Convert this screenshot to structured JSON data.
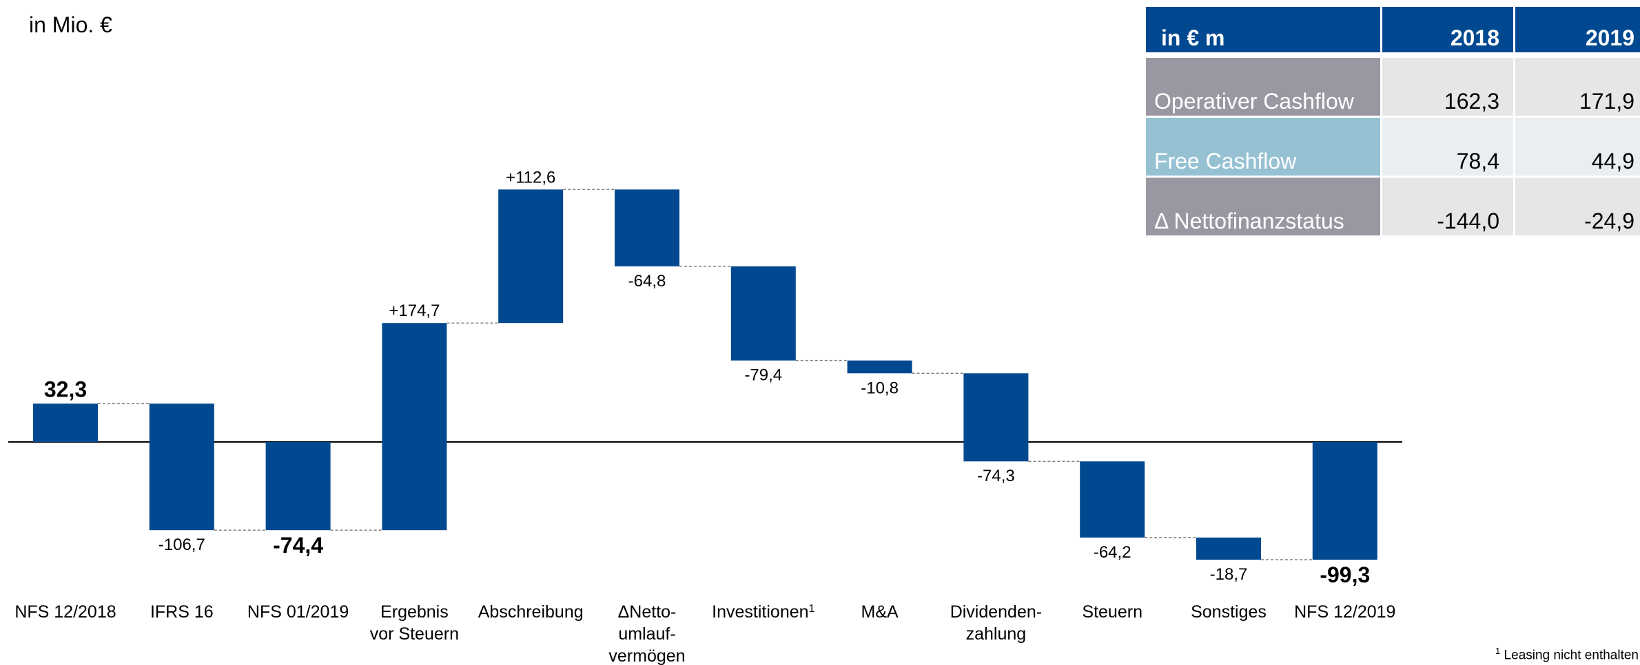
{
  "unit_label": "in Mio. €",
  "footnote": {
    "marker": "1",
    "text": "Leasing nicht enthalten"
  },
  "table": {
    "header": {
      "label": "in € m",
      "y2018": "2018",
      "y2019": "2019"
    },
    "rows": [
      {
        "label": "Operativer Cashflow",
        "y2018": "162,3",
        "y2019": "171,9"
      },
      {
        "label": "Free Cashflow",
        "y2018": "78,4",
        "y2019": "44,9"
      },
      {
        "label": "Δ Nettofinanzstatus",
        "y2018": "-144,0",
        "y2019": "-24,9"
      }
    ]
  },
  "colors": {
    "bar": "#004990",
    "connector": "#808080",
    "axis": "#000000"
  },
  "chart_data": {
    "type": "bar",
    "subtype": "waterfall",
    "ylabel": "in Mio. €",
    "steps": [
      {
        "category": [
          "NFS 12/2018"
        ],
        "kind": "total",
        "value": 32.3,
        "label": "32,3",
        "label_pos": "top",
        "bold": true
      },
      {
        "category": [
          "IFRS 16"
        ],
        "kind": "delta",
        "value": -106.7,
        "label": "-106,7",
        "label_pos": "bottom",
        "bold": false
      },
      {
        "category": [
          "NFS 01/2019"
        ],
        "kind": "total",
        "value": -74.4,
        "label": "-74,4",
        "label_pos": "bottom",
        "bold": true
      },
      {
        "category": [
          "Ergebnis",
          "vor Steuern"
        ],
        "kind": "delta",
        "value": 174.7,
        "label": "+174,7",
        "label_pos": "top",
        "bold": false
      },
      {
        "category": [
          "Abschreibung"
        ],
        "kind": "delta",
        "value": 112.6,
        "label": "+112,6",
        "label_pos": "top",
        "bold": false
      },
      {
        "category": [
          "ΔNetto-",
          "umlauf-",
          "vermögen"
        ],
        "kind": "delta",
        "value": -64.8,
        "label": "-64,8",
        "label_pos": "bottom",
        "bold": false
      },
      {
        "category": [
          "Investitionen"
        ],
        "sup": "1",
        "kind": "delta",
        "value": -79.4,
        "label": "-79,4",
        "label_pos": "bottom",
        "bold": false
      },
      {
        "category": [
          "M&A"
        ],
        "kind": "delta",
        "value": -10.8,
        "label": "-10,8",
        "label_pos": "bottom",
        "bold": false
      },
      {
        "category": [
          "Dividenden-",
          "zahlung"
        ],
        "kind": "delta",
        "value": -74.3,
        "label": "-74,3",
        "label_pos": "bottom",
        "bold": false
      },
      {
        "category": [
          "Steuern"
        ],
        "kind": "delta",
        "value": -64.2,
        "label": "-64,2",
        "label_pos": "bottom",
        "bold": false
      },
      {
        "category": [
          "Sonstiges"
        ],
        "kind": "delta",
        "value": -18.7,
        "label": "-18,7",
        "label_pos": "bottom",
        "bold": false
      },
      {
        "category": [
          "NFS 12/2019"
        ],
        "kind": "total",
        "value": -99.3,
        "label": "-99,3",
        "label_pos": "bottom",
        "bold": true
      }
    ]
  }
}
